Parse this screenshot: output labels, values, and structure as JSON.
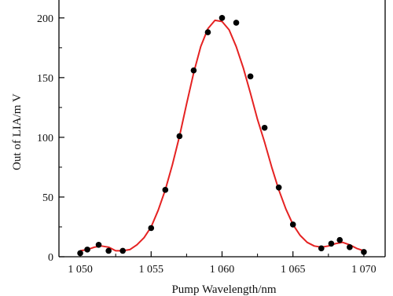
{
  "chart_data": {
    "type": "scatter",
    "xlabel": "Pump Wavelength/nm",
    "ylabel": "Out of LIA/m V",
    "xlim": [
      1048.5,
      1071.5
    ],
    "ylim": [
      0,
      215
    ],
    "x_ticks": [
      {
        "value": 1050,
        "label": "1 050"
      },
      {
        "value": 1055,
        "label": "1 055"
      },
      {
        "value": 1060,
        "label": "1 060"
      },
      {
        "value": 1065,
        "label": "1 065"
      },
      {
        "value": 1070,
        "label": "1 070"
      }
    ],
    "y_ticks": [
      {
        "value": 0,
        "label": "0"
      },
      {
        "value": 50,
        "label": "50"
      },
      {
        "value": 100,
        "label": "100"
      },
      {
        "value": 150,
        "label": "150"
      },
      {
        "value": 200,
        "label": "200"
      }
    ],
    "series": [
      {
        "style": "markers",
        "color": "#000000",
        "points": [
          [
            1050.0,
            3
          ],
          [
            1050.5,
            6
          ],
          [
            1051.3,
            10
          ],
          [
            1052.0,
            5
          ],
          [
            1053.0,
            5
          ],
          [
            1055.0,
            24
          ],
          [
            1056.0,
            56
          ],
          [
            1057.0,
            101
          ],
          [
            1058.0,
            156
          ],
          [
            1059.0,
            188
          ],
          [
            1060.0,
            200
          ],
          [
            1061.0,
            196
          ],
          [
            1062.0,
            151
          ],
          [
            1063.0,
            108
          ],
          [
            1064.0,
            58
          ],
          [
            1065.0,
            27
          ],
          [
            1067.0,
            7
          ],
          [
            1067.7,
            11
          ],
          [
            1068.3,
            14
          ],
          [
            1069.0,
            8
          ],
          [
            1070.0,
            4
          ]
        ]
      },
      {
        "style": "line",
        "color": "#e52222",
        "points": [
          [
            1050.0,
            5
          ],
          [
            1050.5,
            6
          ],
          [
            1051.0,
            8
          ],
          [
            1051.5,
            9
          ],
          [
            1052.0,
            8
          ],
          [
            1052.5,
            5
          ],
          [
            1053.0,
            5
          ],
          [
            1053.5,
            6
          ],
          [
            1054.0,
            10
          ],
          [
            1054.5,
            16
          ],
          [
            1055.0,
            25
          ],
          [
            1055.5,
            39
          ],
          [
            1056.0,
            56
          ],
          [
            1056.5,
            77
          ],
          [
            1057.0,
            101
          ],
          [
            1057.5,
            128
          ],
          [
            1058.0,
            154
          ],
          [
            1058.5,
            176
          ],
          [
            1059.0,
            191
          ],
          [
            1059.5,
            198
          ],
          [
            1060.0,
            197
          ],
          [
            1060.5,
            190
          ],
          [
            1061.0,
            176
          ],
          [
            1061.5,
            158
          ],
          [
            1062.0,
            137
          ],
          [
            1062.5,
            115
          ],
          [
            1063.0,
            96
          ],
          [
            1063.5,
            75
          ],
          [
            1064.0,
            56
          ],
          [
            1064.5,
            40
          ],
          [
            1065.0,
            27
          ],
          [
            1065.5,
            18
          ],
          [
            1066.0,
            12
          ],
          [
            1066.5,
            9
          ],
          [
            1067.0,
            8
          ],
          [
            1067.5,
            9
          ],
          [
            1068.0,
            11
          ],
          [
            1068.5,
            12
          ],
          [
            1069.0,
            10
          ],
          [
            1069.5,
            7
          ],
          [
            1070.0,
            5
          ]
        ]
      }
    ],
    "grid": false,
    "legend": "none"
  }
}
